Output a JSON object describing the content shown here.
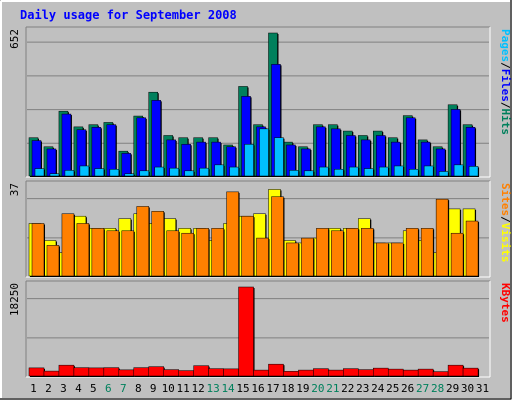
{
  "chart_data": {
    "type": "bar",
    "title": "Daily usage for September 2008",
    "colors": {
      "background": "#C0C0C0",
      "title": "#0000FF",
      "hits": "#00805C",
      "files": "#0000FF",
      "pages": "#00C0FF",
      "visits": "#FFFF00",
      "sites": "#FF8000",
      "kbytes": "#FF0000",
      "weekend_label": "#00805C",
      "weekday_label": "#000000"
    },
    "days": [
      "1",
      "2",
      "3",
      "4",
      "5",
      "6",
      "7",
      "8",
      "9",
      "10",
      "11",
      "12",
      "13",
      "14",
      "15",
      "16",
      "17",
      "18",
      "19",
      "20",
      "21",
      "22",
      "23",
      "24",
      "25",
      "26",
      "27",
      "28",
      "29",
      "30",
      "31"
    ],
    "weekend_days": [
      "6",
      "7",
      "13",
      "14",
      "20",
      "21",
      "27",
      "28"
    ],
    "panels": [
      {
        "id": "hits",
        "scale_label": "652",
        "ymax": 652,
        "legend": [
          {
            "text": "Pages",
            "color": "#00C0FF"
          },
          {
            "text": "/",
            "color": "#000000"
          },
          {
            "text": "Files",
            "color": "#0000FF"
          },
          {
            "text": "/",
            "color": "#000000"
          },
          {
            "text": "Hits",
            "color": "#00805C"
          }
        ],
        "series": [
          {
            "key": "hits",
            "color": "#00805C",
            "values": [
              178,
              137,
              298,
              227,
              237,
              247,
              117,
              276,
              384,
              188,
              178,
              178,
              178,
              145,
              410,
              237,
              652,
              158,
              137,
              237,
              237,
              208,
              188,
              208,
              178,
              278,
              168,
              137,
              327,
              237,
              0
            ]
          },
          {
            "key": "files",
            "color": "#0000FF",
            "values": [
              165,
              127,
              285,
              214,
              225,
              237,
              107,
              268,
              347,
              168,
              148,
              158,
              158,
              137,
              365,
              227,
              510,
              145,
              127,
              227,
              218,
              188,
              168,
              188,
              158,
              268,
              158,
              127,
              306,
              225,
              0
            ]
          },
          {
            "key": "pages",
            "color": "#00C0FF",
            "values": [
              38,
              15,
              30,
              50,
              38,
              35,
              15,
              28,
              45,
              40,
              28,
              40,
              55,
              45,
              148,
              218,
              178,
              30,
              28,
              45,
              35,
              45,
              38,
              45,
              50,
              35,
              50,
              25,
              55,
              48,
              0
            ]
          }
        ]
      },
      {
        "id": "visits",
        "scale_label": "37",
        "ymax": 37,
        "legend": [
          {
            "text": "Sites",
            "color": "#FF8000"
          },
          {
            "text": "/",
            "color": "#000000"
          },
          {
            "text": "Visits",
            "color": "#FFFF00"
          }
        ],
        "series": [
          {
            "key": "visits",
            "color": "#FFFF00",
            "values": [
              22,
              15,
              10,
              25,
              20,
              20,
              24,
              26,
              22,
              24,
              20,
              20,
              15,
              22,
              25,
              26,
              36,
              15,
              14,
              16,
              20,
              20,
              24,
              14,
              14,
              19,
              15,
              10,
              28,
              28,
              0
            ]
          },
          {
            "key": "sites",
            "color": "#FF8000",
            "values": [
              22,
              13,
              26,
              22,
              20,
              19,
              19,
              29,
              27,
              19,
              18,
              20,
              20,
              35,
              25,
              16,
              33,
              14,
              16,
              20,
              19,
              20,
              20,
              14,
              14,
              20,
              20,
              32,
              18,
              23,
              0
            ]
          }
        ]
      },
      {
        "id": "kbytes",
        "scale_label": "18250",
        "ymax": 18250,
        "legend": [
          {
            "text": "KBytes",
            "color": "#FF0000"
          }
        ],
        "series": [
          {
            "key": "kbytes",
            "color": "#FF0000",
            "values": [
              1850,
              1200,
              2400,
              1900,
              1850,
              1900,
              1450,
              1900,
              2100,
              1500,
              1300,
              2300,
              1700,
              1650,
              18250,
              1400,
              2600,
              1150,
              1400,
              1700,
              1400,
              1700,
              1500,
              1800,
              1600,
              1400,
              1600,
              1100,
              2400,
              1800,
              0
            ]
          }
        ]
      }
    ]
  }
}
